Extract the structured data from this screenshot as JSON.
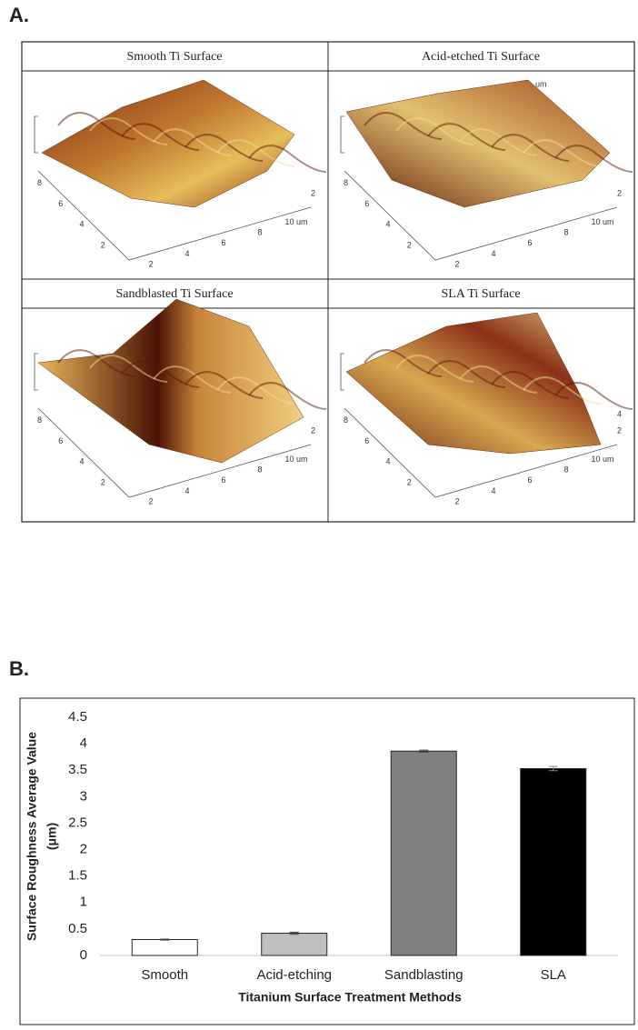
{
  "figure": {
    "label_a": "A.",
    "label_b": "B.",
    "panels": [
      {
        "title": "Smooth Ti Surface",
        "left_ticks": [
          "8",
          "6",
          "4",
          "2"
        ],
        "bottom_ticks": [
          "2",
          "4",
          "6",
          "8",
          "10 um"
        ],
        "right_ticks": [
          "2"
        ]
      },
      {
        "title": "Acid-etched Ti Surface",
        "left_ticks": [
          "8",
          "6",
          "4",
          "2"
        ],
        "bottom_ticks": [
          "2",
          "4",
          "6",
          "8",
          "10 um"
        ],
        "right_ticks": [
          "2"
        ],
        "top_unit": "um"
      },
      {
        "title": "Sandblasted Ti Surface",
        "left_ticks": [
          "8",
          "6",
          "4",
          "2"
        ],
        "bottom_ticks": [
          "2",
          "4",
          "6",
          "8",
          "10 um"
        ],
        "right_ticks": [
          "2"
        ]
      },
      {
        "title": "SLA Ti Surface",
        "left_ticks": [
          "8",
          "6",
          "4",
          "2"
        ],
        "bottom_ticks": [
          "2",
          "4",
          "6",
          "8",
          "10 um"
        ],
        "right_ticks": [
          "2",
          "4"
        ]
      }
    ]
  },
  "chart_data": {
    "type": "bar",
    "categories": [
      "Smooth",
      "Acid-etching",
      "Sandblasting",
      "SLA"
    ],
    "values": [
      0.3,
      0.42,
      3.86,
      3.53
    ],
    "errors": [
      0.01,
      0.02,
      0.02,
      0.04
    ],
    "colors": [
      "#ffffff",
      "#bfbfbf",
      "#808080",
      "#000000"
    ],
    "ylim": [
      0,
      4.5
    ],
    "yticks": [
      0,
      0.5,
      1,
      1.5,
      2,
      2.5,
      3,
      3.5,
      4,
      4.5
    ],
    "ylabel": [
      "Surface Roughness Average Value",
      "(μm)"
    ],
    "xlabel": "Titanium Surface Treatment Methods",
    "grid": false
  }
}
